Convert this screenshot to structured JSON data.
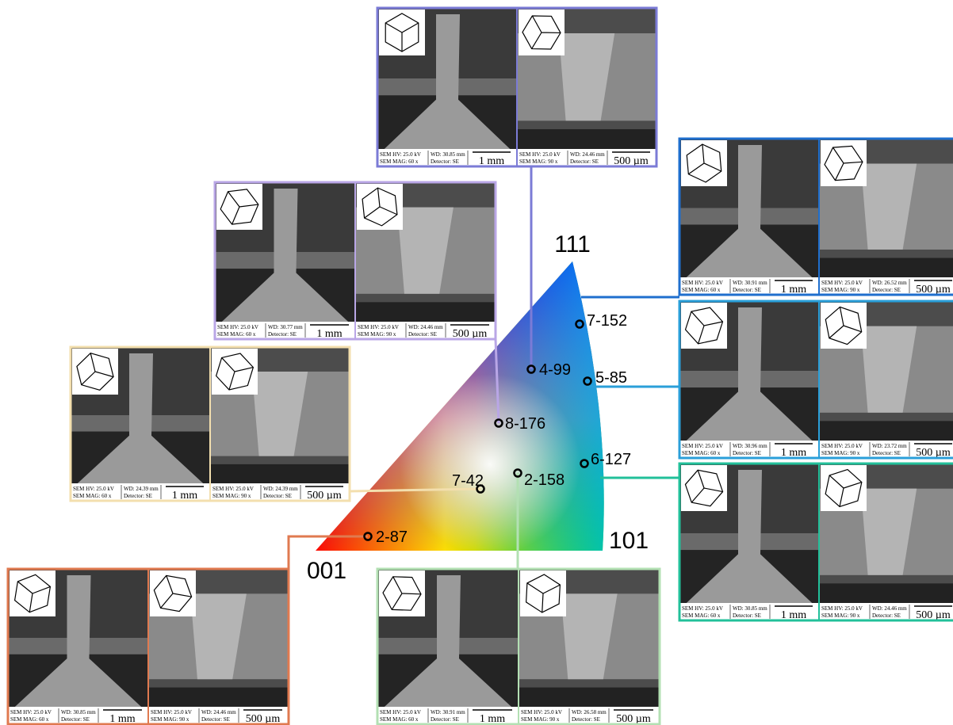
{
  "triangle": {
    "corners": [
      "111",
      "101",
      "001"
    ]
  },
  "panels": [
    {
      "point": "4-99",
      "color": "#7b7bd6",
      "images": [
        {
          "hv": "SEM HV: 25.0 kV",
          "wd": "WD: 30.85 mm",
          "mag": "SEM MAG: 60 x",
          "detector": "Detector: SE",
          "scale": "1 mm"
        },
        {
          "hv": "SEM HV: 25.0 kV",
          "wd": "WD: 24.46 mm",
          "mag": "SEM MAG: 90 x",
          "detector": "Detector: SE",
          "scale": "500 µm"
        }
      ]
    },
    {
      "point": "8-176",
      "color": "#b9a6e6",
      "images": [
        {
          "hv": "SEM HV: 25.0 kV",
          "wd": "WD: 30.77 mm",
          "mag": "SEM MAG: 60 x",
          "detector": "Detector: SE",
          "scale": "1 mm"
        },
        {
          "hv": "SEM HV: 25.0 kV",
          "wd": "WD: 24.46 mm",
          "mag": "SEM MAG: 90 x",
          "detector": "Detector: SE",
          "scale": "500 µm"
        }
      ]
    },
    {
      "point": "7-42",
      "color": "#f3dfae",
      "images": [
        {
          "hv": "SEM HV: 25.0 kV",
          "wd": "WD: 24.39 mm",
          "mag": "SEM MAG: 60 x",
          "detector": "Detector: SE",
          "scale": "1 mm"
        },
        {
          "hv": "SEM HV: 25.0 kV",
          "wd": "WD: 24.39 mm",
          "mag": "SEM MAG: 90 x",
          "detector": "Detector: SE",
          "scale": "500 µm"
        }
      ]
    },
    {
      "point": "2-87",
      "color": "#e07a50",
      "images": [
        {
          "hv": "SEM HV: 25.0 kV",
          "wd": "WD: 30.85 mm",
          "mag": "SEM MAG: 60 x",
          "detector": "Detector: SE",
          "scale": "1 mm"
        },
        {
          "hv": "SEM HV: 25.0 kV",
          "wd": "WD: 24.46 mm",
          "mag": "SEM MAG: 90 x",
          "detector": "Detector: SE",
          "scale": "500 µm"
        }
      ]
    },
    {
      "point": "2-158",
      "color": "#b3e0b3",
      "images": [
        {
          "hv": "SEM HV: 25.0 kV",
          "wd": "WD: 30.91 mm",
          "mag": "SEM MAG: 60 x",
          "detector": "Detector: SE",
          "scale": "1 mm"
        },
        {
          "hv": "SEM HV: 25.0 kV",
          "wd": "WD: 26.58 mm",
          "mag": "SEM MAG: 90 x",
          "detector": "Detector: SE",
          "scale": "500 µm"
        }
      ]
    },
    {
      "point": "7-152",
      "color": "#1f6fce",
      "images": [
        {
          "hv": "SEM HV: 25.0 kV",
          "wd": "WD: 30.91 mm",
          "mag": "SEM MAG: 60 x",
          "detector": "Detector: SE",
          "scale": "1 mm"
        },
        {
          "hv": "SEM HV: 25.0 kV",
          "wd": "WD: 26.52 mm",
          "mag": "SEM MAG: 90 x",
          "detector": "Detector: SE",
          "scale": "500 µm"
        }
      ]
    },
    {
      "point": "5-85",
      "color": "#2a9fd9",
      "images": [
        {
          "hv": "SEM HV: 25.0 kV",
          "wd": "WD: 30.96 mm",
          "mag": "SEM MAG: 60 x",
          "detector": "Detector: SE",
          "scale": "1 mm"
        },
        {
          "hv": "SEM HV: 25.0 kV",
          "wd": "WD: 23.72 mm",
          "mag": "SEM MAG: 90 x",
          "detector": "Detector: SE",
          "scale": "500 µm"
        }
      ]
    },
    {
      "point": "6-127",
      "color": "#22c09a",
      "images": [
        {
          "hv": "SEM HV: 25.0 kV",
          "wd": "WD: 30.85 mm",
          "mag": "SEM MAG: 60 x",
          "detector": "Detector: SE",
          "scale": "1 mm"
        },
        {
          "hv": "SEM HV: 25.0 kV",
          "wd": "WD: 24.46 mm",
          "mag": "SEM MAG: 90 x",
          "detector": "Detector: SE",
          "scale": "500 µm"
        }
      ]
    }
  ]
}
